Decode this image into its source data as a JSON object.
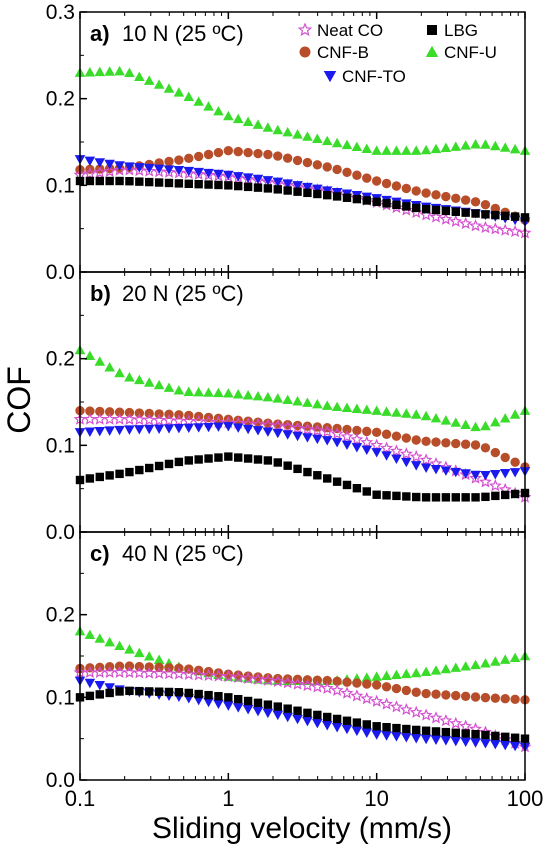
{
  "figure": {
    "ylabel": "COF",
    "xlabel": "Sliding velocity (mm/s)"
  },
  "legend": {
    "entries": [
      {
        "name": "Neat CO",
        "marker": "star",
        "color": "#d44fd0"
      },
      {
        "name": "LBG",
        "marker": "square",
        "color": "#000000"
      },
      {
        "name": "CNF-B",
        "marker": "circle",
        "color": "#b84d2a"
      },
      {
        "name": "CNF-U",
        "marker": "triangle-up",
        "color": "#3adc2a"
      },
      {
        "name": "CNF-TO",
        "marker": "triangle-down",
        "color": "#1a1aee"
      }
    ]
  },
  "chart_data": [
    {
      "type": "scatter",
      "panel_label": "a)",
      "title": "10 N (25 ºC)",
      "xscale": "log",
      "xlim": [
        0.1,
        100
      ],
      "ylim": [
        0.0,
        0.3
      ],
      "yticks": [
        "0.0",
        "0.1",
        "0.2",
        "0.3"
      ],
      "series": [
        {
          "name": "Neat CO",
          "x": [
            0.1,
            0.2,
            0.5,
            1,
            2,
            5,
            10,
            20,
            50,
            100
          ],
          "y": [
            0.112,
            0.118,
            0.114,
            0.11,
            0.103,
            0.092,
            0.08,
            0.067,
            0.052,
            0.045
          ]
        },
        {
          "name": "LBG",
          "x": [
            0.1,
            0.2,
            0.5,
            1,
            2,
            5,
            10,
            20,
            50,
            100
          ],
          "y": [
            0.105,
            0.105,
            0.102,
            0.1,
            0.096,
            0.088,
            0.081,
            0.073,
            0.067,
            0.063
          ]
        },
        {
          "name": "CNF-B",
          "x": [
            0.1,
            0.2,
            0.5,
            1,
            2,
            5,
            10,
            20,
            50,
            100
          ],
          "y": [
            0.118,
            0.12,
            0.13,
            0.14,
            0.135,
            0.12,
            0.105,
            0.092,
            0.08,
            0.06
          ]
        },
        {
          "name": "CNF-U",
          "x": [
            0.1,
            0.2,
            0.5,
            1,
            2,
            5,
            10,
            20,
            50,
            100
          ],
          "y": [
            0.23,
            0.232,
            0.205,
            0.18,
            0.165,
            0.15,
            0.14,
            0.14,
            0.148,
            0.14
          ]
        },
        {
          "name": "CNF-TO",
          "x": [
            0.1,
            0.2,
            0.5,
            1,
            2,
            5,
            10,
            20,
            50,
            100
          ],
          "y": [
            0.13,
            0.122,
            0.117,
            0.112,
            0.105,
            0.093,
            0.085,
            0.076,
            0.067,
            0.058
          ]
        }
      ]
    },
    {
      "type": "scatter",
      "panel_label": "b)",
      "title": "20 N (25 ºC)",
      "xscale": "log",
      "xlim": [
        0.1,
        100
      ],
      "ylim": [
        0.0,
        0.3
      ],
      "yticks": [
        "0.0",
        "0.1",
        "0.2"
      ],
      "series": [
        {
          "name": "Neat CO",
          "x": [
            0.1,
            0.2,
            0.5,
            1,
            2,
            5,
            10,
            20,
            50,
            100
          ],
          "y": [
            0.13,
            0.13,
            0.128,
            0.126,
            0.123,
            0.115,
            0.1,
            0.085,
            0.06,
            0.04
          ]
        },
        {
          "name": "LBG",
          "x": [
            0.1,
            0.2,
            0.5,
            1,
            2,
            5,
            10,
            20,
            50,
            100
          ],
          "y": [
            0.06,
            0.068,
            0.082,
            0.087,
            0.082,
            0.06,
            0.043,
            0.04,
            0.04,
            0.045
          ]
        },
        {
          "name": "CNF-B",
          "x": [
            0.1,
            0.2,
            0.5,
            1,
            2,
            5,
            10,
            20,
            50,
            100
          ],
          "y": [
            0.14,
            0.138,
            0.135,
            0.13,
            0.125,
            0.12,
            0.115,
            0.105,
            0.1,
            0.075
          ]
        },
        {
          "name": "CNF-U",
          "x": [
            0.1,
            0.2,
            0.5,
            1,
            2,
            5,
            10,
            20,
            50,
            100
          ],
          "y": [
            0.21,
            0.18,
            0.162,
            0.16,
            0.155,
            0.145,
            0.14,
            0.135,
            0.12,
            0.14
          ]
        },
        {
          "name": "CNF-TO",
          "x": [
            0.1,
            0.2,
            0.5,
            1,
            2,
            5,
            10,
            20,
            50,
            100
          ],
          "y": [
            0.115,
            0.118,
            0.12,
            0.122,
            0.115,
            0.105,
            0.092,
            0.075,
            0.065,
            0.07
          ]
        }
      ]
    },
    {
      "type": "scatter",
      "panel_label": "c)",
      "title": "40 N (25 ºC)",
      "xscale": "log",
      "xlim": [
        0.1,
        100
      ],
      "ylim": [
        0.0,
        0.3
      ],
      "yticks": [
        "0.0",
        "0.1",
        "0.2"
      ],
      "series": [
        {
          "name": "Neat CO",
          "x": [
            0.1,
            0.2,
            0.5,
            1,
            2,
            5,
            10,
            20,
            50,
            100
          ],
          "y": [
            0.13,
            0.13,
            0.128,
            0.125,
            0.12,
            0.11,
            0.095,
            0.08,
            0.06,
            0.04
          ]
        },
        {
          "name": "LBG",
          "x": [
            0.1,
            0.2,
            0.5,
            1,
            2,
            5,
            10,
            20,
            50,
            100
          ],
          "y": [
            0.1,
            0.108,
            0.106,
            0.1,
            0.09,
            0.075,
            0.065,
            0.06,
            0.055,
            0.05
          ]
        },
        {
          "name": "CNF-B",
          "x": [
            0.1,
            0.2,
            0.5,
            1,
            2,
            5,
            10,
            20,
            50,
            100
          ],
          "y": [
            0.135,
            0.138,
            0.135,
            0.128,
            0.123,
            0.12,
            0.115,
            0.105,
            0.1,
            0.097
          ]
        },
        {
          "name": "CNF-U",
          "x": [
            0.1,
            0.2,
            0.5,
            1,
            2,
            5,
            10,
            20,
            50,
            100
          ],
          "y": [
            0.18,
            0.16,
            0.135,
            0.125,
            0.12,
            0.12,
            0.125,
            0.13,
            0.14,
            0.15
          ]
        },
        {
          "name": "CNF-TO",
          "x": [
            0.1,
            0.2,
            0.5,
            1,
            2,
            5,
            10,
            20,
            50,
            100
          ],
          "y": [
            0.12,
            0.108,
            0.1,
            0.09,
            0.08,
            0.065,
            0.055,
            0.05,
            0.045,
            0.04
          ]
        }
      ]
    }
  ],
  "xaxis": {
    "ticks": [
      0.1,
      1,
      10,
      100
    ],
    "tick_labels": [
      "0.1",
      "1",
      "10",
      "100"
    ]
  }
}
